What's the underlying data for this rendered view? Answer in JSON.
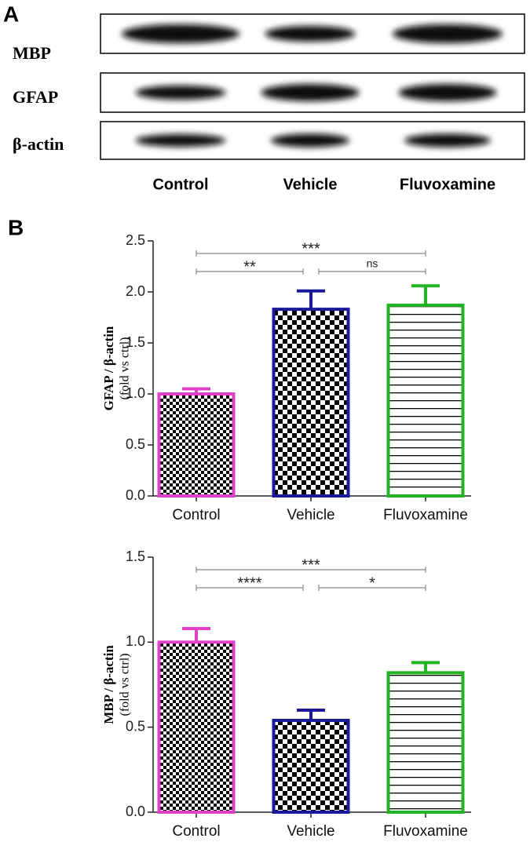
{
  "blot": {
    "panel": "A",
    "rows": [
      "MBP",
      "GFAP",
      "β-actin"
    ],
    "lanes": [
      "Control",
      "Vehicle",
      "Fluvoxamine"
    ]
  },
  "charts_panel": "B",
  "chart_data": [
    {
      "type": "bar",
      "ylabel": "GFAP / β-actin",
      "ylabel_sub": "(fold vs ctrl)",
      "categories": [
        "Control",
        "Vehicle",
        "Fluvoxamine"
      ],
      "values": [
        1.0,
        1.83,
        1.87
      ],
      "errors": [
        0.05,
        0.18,
        0.19
      ],
      "colors": [
        "#e040c8",
        "#1a1a9a",
        "#22b422"
      ],
      "patterns": [
        "checker-fine",
        "checker",
        "hlines"
      ],
      "ylim": [
        0,
        2.5
      ],
      "yticks": [
        {
          "value": 0,
          "label": "0.0"
        },
        0.5,
        {
          "value": 1,
          "label": "1.0"
        },
        1.5,
        {
          "value": 2,
          "label": "2.0"
        },
        2.5
      ],
      "comparisons": [
        {
          "label": "***",
          "groups": [
            "Control",
            "Fluvoxamine"
          ]
        },
        {
          "label": "**",
          "groups": [
            "Control",
            "Vehicle"
          ]
        },
        {
          "label": "ns",
          "groups": [
            "Vehicle",
            "Fluvoxamine"
          ]
        }
      ]
    },
    {
      "type": "bar",
      "ylabel": "MBP / β-actin",
      "ylabel_sub": "(fold vs ctrl)",
      "categories": [
        "Control",
        "Vehicle",
        "Fluvoxamine"
      ],
      "values": [
        1.0,
        0.54,
        0.82
      ],
      "errors": [
        0.08,
        0.06,
        0.06
      ],
      "colors": [
        "#e040c8",
        "#1a1a9a",
        "#22b422"
      ],
      "patterns": [
        "checker-fine",
        "checker",
        "hlines"
      ],
      "ylim": [
        0,
        1.5
      ],
      "yticks": [
        {
          "value": 0,
          "label": "0.0"
        },
        0.5,
        {
          "value": 1,
          "label": "1.0"
        },
        1.5
      ],
      "comparisons": [
        {
          "label": "***",
          "groups": [
            "Control",
            "Fluvoxamine"
          ]
        },
        {
          "label": "****",
          "groups": [
            "Control",
            "Vehicle"
          ]
        },
        {
          "label": "*",
          "groups": [
            "Vehicle",
            "Fluvoxamine"
          ]
        }
      ]
    }
  ]
}
